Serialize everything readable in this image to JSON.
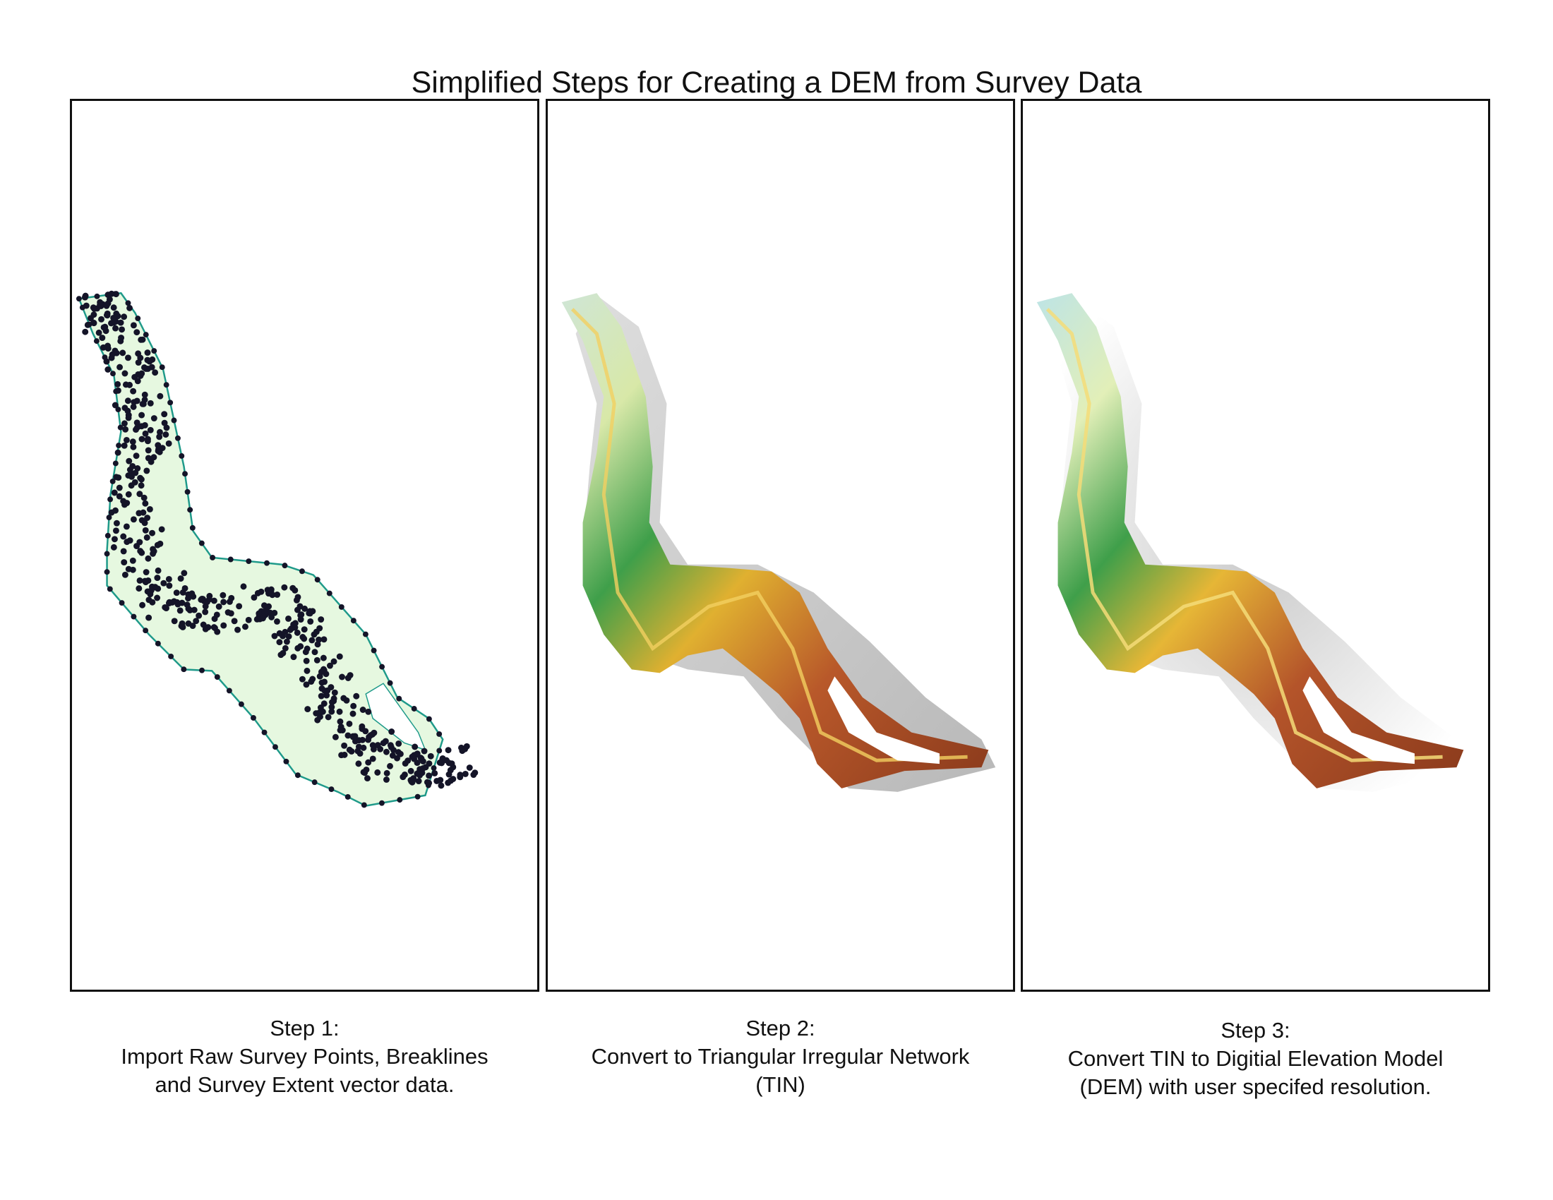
{
  "title": "Simplified Steps for Creating a DEM from Survey Data",
  "colors": {
    "frame": "#111111",
    "extent_fill": "#e6f8e0",
    "extent_line": "#1f9a8a",
    "survey_point": "#141428",
    "dem_green": "#3f9f4a",
    "dem_light": "#d8ecb0",
    "dem_yellow": "#e0b030",
    "dem_brown": "#8a3a1c",
    "dem_shadow": "#b8b8b8"
  },
  "steps": [
    {
      "heading": "Step 1:",
      "line1": "Import Raw Survey Points, Breaklines",
      "line2": "and Survey Extent vector data."
    },
    {
      "heading": "Step 2:",
      "line1": "Convert to Triangular Irregular Network",
      "line2": "(TIN)"
    },
    {
      "heading": "Step 3:",
      "line1": "Convert TIN to Digitial Elevation Model",
      "line2": "(DEM) with user specifed resolution."
    }
  ]
}
